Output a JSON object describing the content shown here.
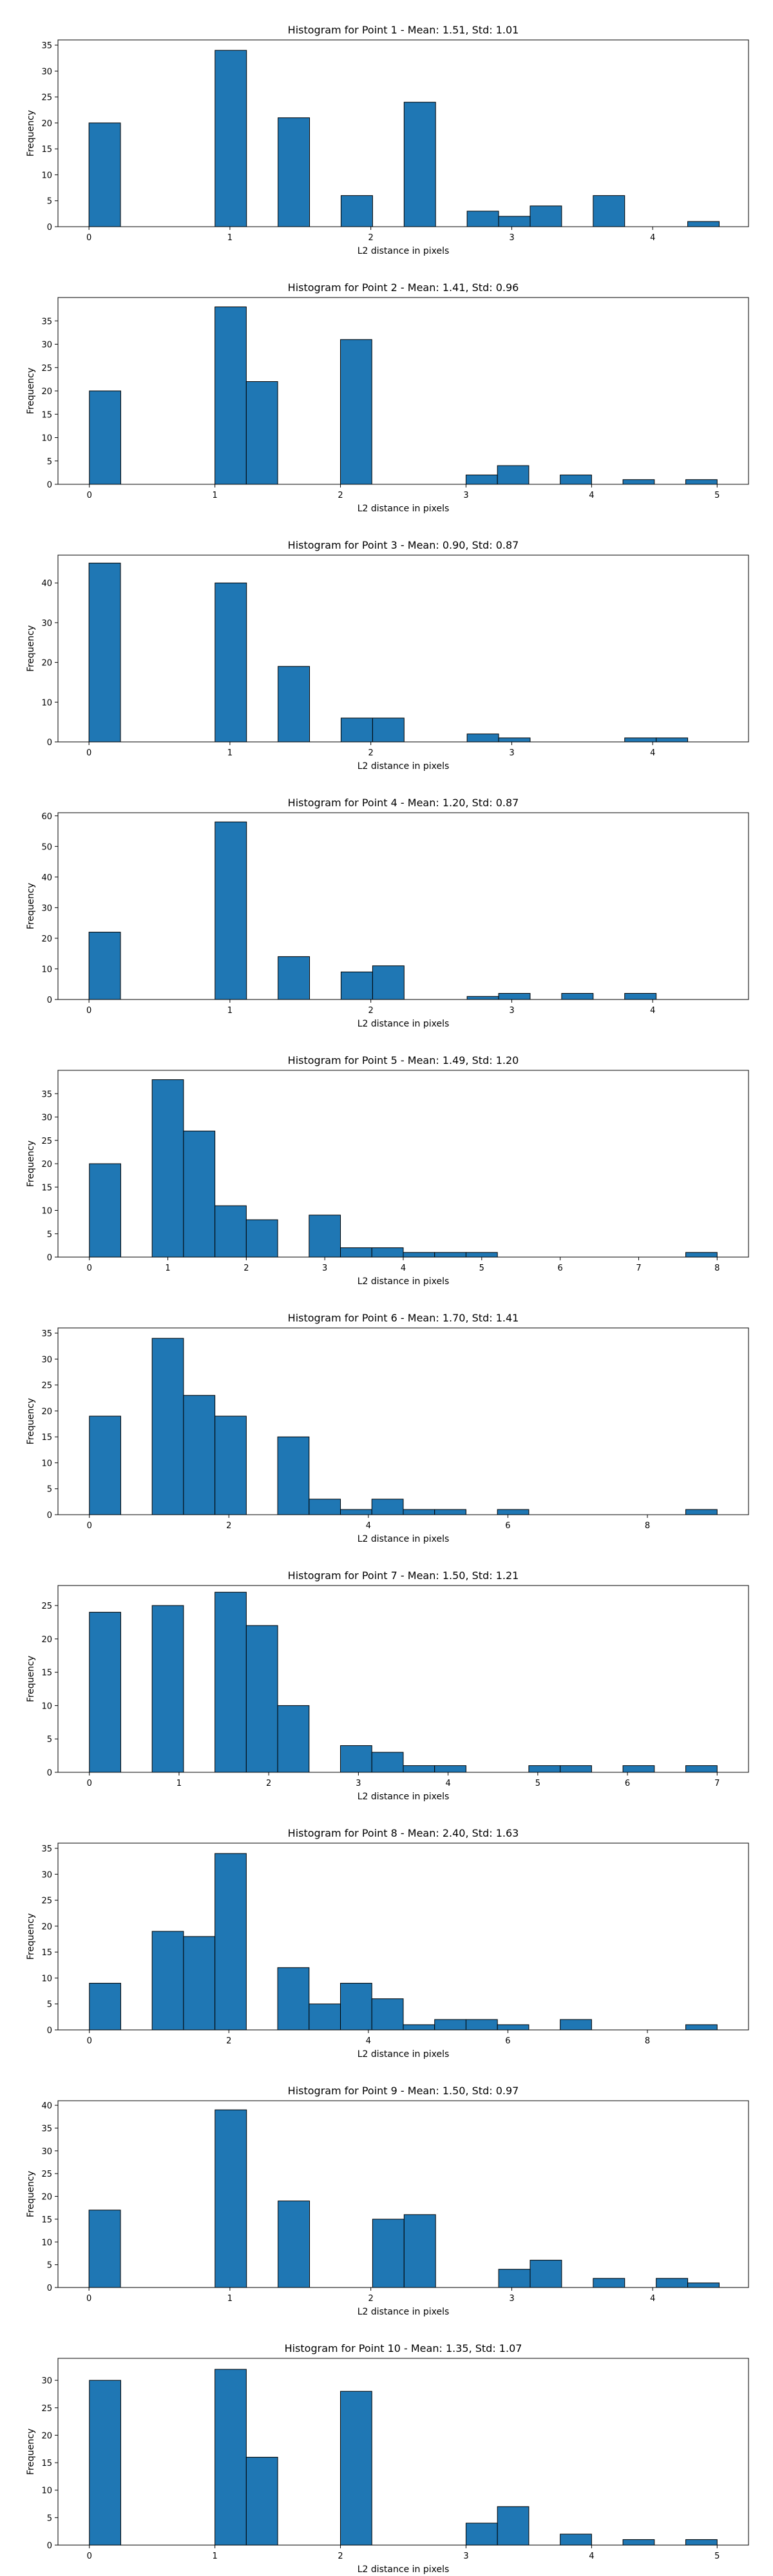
{
  "chart_data": [
    {
      "type": "bar",
      "title": "Histogram for Point 1 - Mean: 1.51, Std: 1.01",
      "xlabel": "L2 distance in pixels",
      "ylabel": "Frequency",
      "xlim": [
        -0.22,
        4.68
      ],
      "ylim": [
        0,
        36
      ],
      "xticks": [
        0,
        1,
        2,
        3,
        4
      ],
      "yticks": [
        0,
        5,
        10,
        15,
        20,
        25,
        30,
        35
      ],
      "bin_edges": [
        0,
        0.2236,
        0.4472,
        0.6708,
        0.8944,
        1.118,
        1.3416,
        1.5652,
        1.7888,
        2.0124,
        2.236,
        2.4596,
        2.6832,
        2.9068,
        3.1304,
        3.354,
        3.5776,
        3.8012,
        4.0248,
        4.2484,
        4.472
      ],
      "values": [
        20,
        0,
        0,
        0,
        34,
        0,
        21,
        0,
        6,
        0,
        24,
        0,
        3,
        2,
        4,
        0,
        6,
        0,
        0,
        1
      ]
    },
    {
      "type": "bar",
      "title": "Histogram for Point 2 - Mean: 1.41, Std: 0.96",
      "xlabel": "L2 distance in pixels",
      "ylabel": "Frequency",
      "xlim": [
        -0.25,
        5.25
      ],
      "ylim": [
        0,
        40
      ],
      "xticks": [
        0,
        1,
        2,
        3,
        4,
        5
      ],
      "yticks": [
        0,
        5,
        10,
        15,
        20,
        25,
        30,
        35
      ],
      "bin_edges": [
        0,
        0.25,
        0.5,
        0.75,
        1.0,
        1.25,
        1.5,
        1.75,
        2.0,
        2.25,
        2.5,
        2.75,
        3.0,
        3.25,
        3.5,
        3.75,
        4.0,
        4.25,
        4.5,
        4.75,
        5.0
      ],
      "values": [
        20,
        0,
        0,
        0,
        38,
        22,
        0,
        0,
        31,
        0,
        0,
        0,
        2,
        4,
        0,
        2,
        0,
        1,
        0,
        1
      ]
    },
    {
      "type": "bar",
      "title": "Histogram for Point 3 - Mean: 0.90, Std: 0.87",
      "xlabel": "L2 distance in pixels",
      "ylabel": "Frequency",
      "xlim": [
        -0.22,
        4.68
      ],
      "ylim": [
        0,
        47
      ],
      "xticks": [
        0,
        1,
        2,
        3,
        4
      ],
      "yticks": [
        0,
        10,
        20,
        30,
        40
      ],
      "bin_edges": [
        0,
        0.2236,
        0.4472,
        0.6708,
        0.8944,
        1.118,
        1.3416,
        1.5652,
        1.7888,
        2.0124,
        2.236,
        2.4596,
        2.6832,
        2.9068,
        3.1304,
        3.354,
        3.5776,
        3.8012,
        4.0248,
        4.2484,
        4.472
      ],
      "values": [
        45,
        0,
        0,
        0,
        40,
        0,
        19,
        0,
        6,
        6,
        0,
        0,
        2,
        1,
        0,
        0,
        0,
        1,
        1,
        0
      ]
    },
    {
      "type": "bar",
      "title": "Histogram for Point 4 - Mean: 1.20, Std: 0.87",
      "xlabel": "L2 distance in pixels",
      "ylabel": "Frequency",
      "xlim": [
        -0.22,
        4.68
      ],
      "ylim": [
        0,
        61
      ],
      "xticks": [
        0,
        1,
        2,
        3,
        4
      ],
      "yticks": [
        0,
        10,
        20,
        30,
        40,
        50,
        60
      ],
      "bin_edges": [
        0,
        0.2236,
        0.4472,
        0.6708,
        0.8944,
        1.118,
        1.3416,
        1.5652,
        1.7888,
        2.0124,
        2.236,
        2.4596,
        2.6832,
        2.9068,
        3.1304,
        3.354,
        3.5776,
        3.8012,
        4.0248,
        4.2484,
        4.472
      ],
      "values": [
        22,
        0,
        0,
        0,
        58,
        0,
        14,
        0,
        9,
        11,
        0,
        0,
        1,
        2,
        0,
        2,
        0,
        2,
        0,
        0
      ]
    },
    {
      "type": "bar",
      "title": "Histogram for Point 5 - Mean: 1.49, Std: 1.20",
      "xlabel": "L2 distance in pixels",
      "ylabel": "Frequency",
      "xlim": [
        -0.4,
        8.4
      ],
      "ylim": [
        0,
        40
      ],
      "xticks": [
        0,
        1,
        2,
        3,
        4,
        5,
        6,
        7,
        8
      ],
      "yticks": [
        0,
        5,
        10,
        15,
        20,
        25,
        30,
        35
      ],
      "bin_edges": [
        0,
        0.4,
        0.8,
        1.2,
        1.6,
        2.0,
        2.4,
        2.8,
        3.2,
        3.6,
        4.0,
        4.4,
        4.8,
        5.2,
        5.6,
        6.0,
        6.4,
        6.8,
        7.2,
        7.6,
        8.0
      ],
      "values": [
        20,
        0,
        38,
        27,
        11,
        8,
        0,
        9,
        2,
        2,
        1,
        1,
        1,
        0,
        0,
        0,
        0,
        0,
        0,
        1
      ]
    },
    {
      "type": "bar",
      "title": "Histogram for Point 6 - Mean: 1.70, Std: 1.41",
      "xlabel": "L2 distance in pixels",
      "ylabel": "Frequency",
      "xlim": [
        -0.45,
        9.45
      ],
      "ylim": [
        0,
        36
      ],
      "xticks": [
        0,
        2,
        4,
        6,
        8
      ],
      "yticks": [
        0,
        5,
        10,
        15,
        20,
        25,
        30,
        35
      ],
      "bin_edges": [
        0,
        0.45,
        0.9,
        1.35,
        1.8,
        2.25,
        2.7,
        3.15,
        3.6,
        4.05,
        4.5,
        4.95,
        5.4,
        5.85,
        6.3,
        6.75,
        7.2,
        7.65,
        8.1,
        8.55,
        9.0
      ],
      "values": [
        19,
        0,
        34,
        23,
        19,
        0,
        15,
        3,
        1,
        3,
        1,
        1,
        0,
        1,
        0,
        0,
        0,
        0,
        0,
        1
      ]
    },
    {
      "type": "bar",
      "title": "Histogram for Point 7 - Mean: 1.50, Std: 1.21",
      "xlabel": "L2 distance in pixels",
      "ylabel": "Frequency",
      "xlim": [
        -0.35,
        7.35
      ],
      "ylim": [
        0,
        28
      ],
      "xticks": [
        0,
        1,
        2,
        3,
        4,
        5,
        6,
        7
      ],
      "yticks": [
        0,
        5,
        10,
        15,
        20,
        25
      ],
      "bin_edges": [
        0,
        0.35,
        0.7,
        1.05,
        1.4,
        1.75,
        2.1,
        2.45,
        2.8,
        3.15,
        3.5,
        3.85,
        4.2,
        4.55,
        4.9,
        5.25,
        5.6,
        5.95,
        6.3,
        6.65,
        7.0
      ],
      "values": [
        24,
        0,
        25,
        0,
        27,
        22,
        10,
        0,
        4,
        3,
        1,
        1,
        0,
        0,
        1,
        1,
        0,
        1,
        0,
        1
      ]
    },
    {
      "type": "bar",
      "title": "Histogram for Point 8 - Mean: 2.40, Std: 1.63",
      "xlabel": "L2 distance in pixels",
      "ylabel": "Frequency",
      "xlim": [
        -0.45,
        9.45
      ],
      "ylim": [
        0,
        36
      ],
      "xticks": [
        0,
        2,
        4,
        6,
        8
      ],
      "yticks": [
        0,
        5,
        10,
        15,
        20,
        25,
        30,
        35
      ],
      "bin_edges": [
        0,
        0.45,
        0.9,
        1.35,
        1.8,
        2.25,
        2.7,
        3.15,
        3.6,
        4.05,
        4.5,
        4.95,
        5.4,
        5.85,
        6.3,
        6.75,
        7.2,
        7.65,
        8.1,
        8.55,
        9.0
      ],
      "values": [
        9,
        0,
        19,
        18,
        34,
        0,
        12,
        5,
        9,
        6,
        1,
        2,
        2,
        1,
        0,
        2,
        0,
        0,
        0,
        1
      ]
    },
    {
      "type": "bar",
      "title": "Histogram for Point 9 - Mean: 1.50, Std: 0.97",
      "xlabel": "L2 distance in pixels",
      "ylabel": "Frequency",
      "xlim": [
        -0.22,
        4.68
      ],
      "ylim": [
        0,
        41
      ],
      "xticks": [
        0,
        1,
        2,
        3,
        4
      ],
      "yticks": [
        0,
        5,
        10,
        15,
        20,
        25,
        30,
        35,
        40
      ],
      "bin_edges": [
        0,
        0.2236,
        0.4472,
        0.6708,
        0.8944,
        1.118,
        1.3416,
        1.5652,
        1.7888,
        2.0124,
        2.236,
        2.4596,
        2.6832,
        2.9068,
        3.1304,
        3.354,
        3.5776,
        3.8012,
        4.0248,
        4.2484,
        4.472
      ],
      "values": [
        17,
        0,
        0,
        0,
        39,
        0,
        19,
        0,
        0,
        15,
        16,
        0,
        0,
        4,
        6,
        0,
        2,
        0,
        2,
        1
      ]
    },
    {
      "type": "bar",
      "title": "Histogram for Point 10 - Mean: 1.35, Std: 1.07",
      "xlabel": "L2 distance in pixels",
      "ylabel": "Frequency",
      "xlim": [
        -0.25,
        5.25
      ],
      "ylim": [
        0,
        34
      ],
      "xticks": [
        0,
        1,
        2,
        3,
        4,
        5
      ],
      "yticks": [
        0,
        5,
        10,
        15,
        20,
        25,
        30
      ],
      "bin_edges": [
        0,
        0.25,
        0.5,
        0.75,
        1.0,
        1.25,
        1.5,
        1.75,
        2.0,
        2.25,
        2.5,
        2.75,
        3.0,
        3.25,
        3.5,
        3.75,
        4.0,
        4.25,
        4.5,
        4.75,
        5.0
      ],
      "values": [
        30,
        0,
        0,
        0,
        32,
        16,
        0,
        0,
        28,
        0,
        0,
        0,
        4,
        7,
        0,
        2,
        0,
        1,
        0,
        1
      ]
    }
  ],
  "style": {
    "bar_color": "#1f77b4",
    "edge_color": "#000000"
  }
}
